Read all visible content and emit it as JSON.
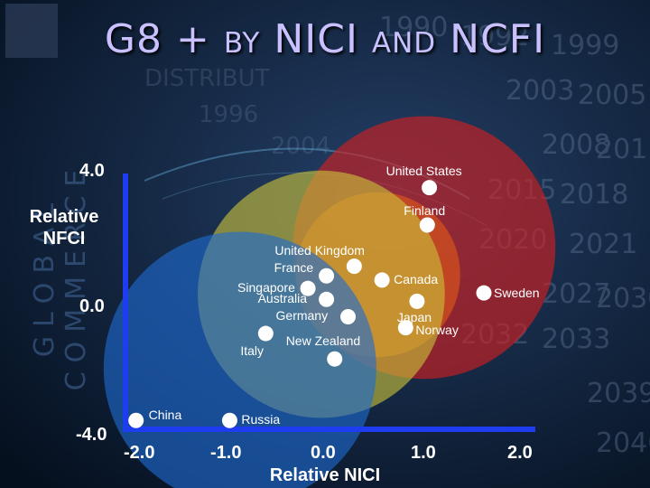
{
  "title": "G8 + by NICI and NCFI",
  "side_text": "GLOBAL COMMERCE",
  "colors": {
    "axis": "#1f3df0",
    "bubble_red": "#d51e1e",
    "bubble_orange": "#e0581a",
    "bubble_yellow": "#c9c23a",
    "bubble_blue": "#1f6ad1",
    "dot": "#ffffff"
  },
  "chart_data": {
    "type": "scatter",
    "xlabel": "Relative NICI",
    "ylabel": "Relative NFCI",
    "xlim": [
      -2.0,
      2.0
    ],
    "ylim": [
      -4.0,
      4.0
    ],
    "x_ticks": [
      "-2.0",
      "-1.0",
      "0.0",
      "1.0",
      "2.0"
    ],
    "y_ticks": [
      "4.0",
      "0.0",
      "-4.0"
    ],
    "points": [
      {
        "label": "United States",
        "x": 0.97,
        "y": 3.56
      },
      {
        "label": "Finland",
        "x": 0.95,
        "y": 2.4
      },
      {
        "label": "United Kingdom",
        "x": 0.24,
        "y": 1.12
      },
      {
        "label": "France",
        "x": -0.03,
        "y": 0.82
      },
      {
        "label": "Canada",
        "x": 0.51,
        "y": 0.69
      },
      {
        "label": "Singapore",
        "x": -0.21,
        "y": 0.43
      },
      {
        "label": "Sweden",
        "x": 1.5,
        "y": 0.29
      },
      {
        "label": "Australia",
        "x": -0.03,
        "y": 0.09
      },
      {
        "label": "Japan",
        "x": 0.85,
        "y": 0.03
      },
      {
        "label": "Germany",
        "x": 0.18,
        "y": -0.45
      },
      {
        "label": "Norway",
        "x": 0.74,
        "y": -0.79
      },
      {
        "label": "Italy",
        "x": -0.62,
        "y": -0.97
      },
      {
        "label": "New Zealand",
        "x": 0.05,
        "y": -1.76
      },
      {
        "label": "China",
        "x": -1.88,
        "y": -3.67
      },
      {
        "label": "Russia",
        "x": -0.97,
        "y": -3.67
      }
    ],
    "bubbles": [
      {
        "x": 0.92,
        "y": 1.7,
        "r": 2.55,
        "color": "#d51e1e"
      },
      {
        "x": 0.47,
        "y": 0.86,
        "r": 1.6,
        "color": "#e0581a"
      },
      {
        "x": -0.08,
        "y": 0.25,
        "r": 2.4,
        "color": "#c9c23a"
      },
      {
        "x": -0.87,
        "y": -2.05,
        "r": 2.65,
        "color": "#1f6ad1"
      }
    ]
  }
}
